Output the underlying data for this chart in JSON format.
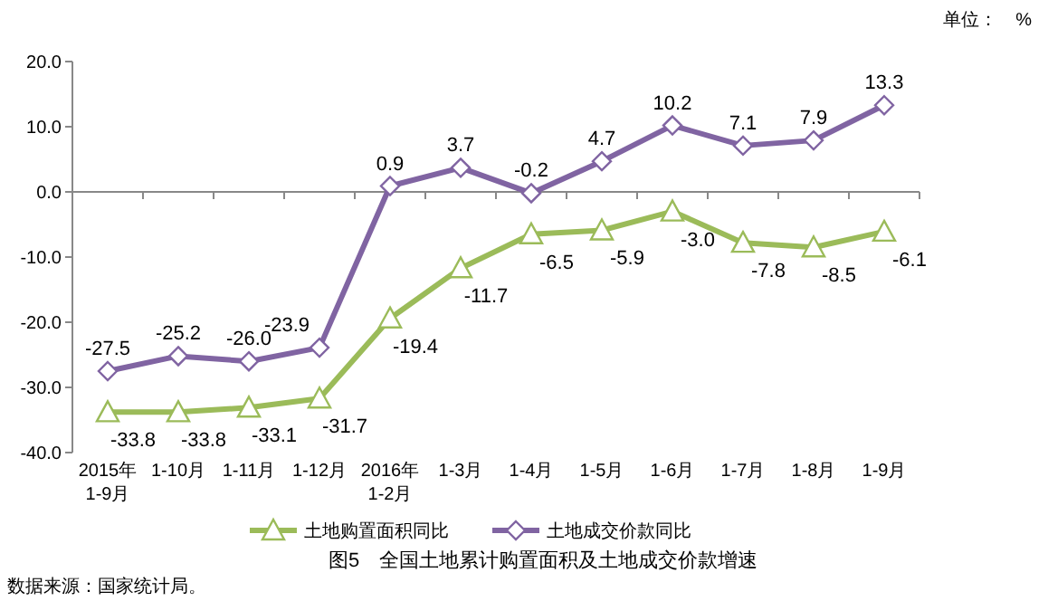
{
  "chart_data": {
    "type": "line",
    "title": "图5　全国土地累计购置面积及土地成交价款增速",
    "categories": [
      "2015年\n1-9月",
      "1-10月",
      "1-11月",
      "1-12月",
      "2016年\n1-2月",
      "1-3月",
      "1-4月",
      "1-5月",
      "1-6月",
      "1-7月",
      "1-8月",
      "1-9月"
    ],
    "series": [
      {
        "name": "土地购置面积同比",
        "color": "#9bbb59",
        "marker": "triangle",
        "values": [
          -33.8,
          -33.8,
          -33.1,
          -31.7,
          -19.4,
          -11.7,
          -6.5,
          -5.9,
          -3.0,
          -7.8,
          -8.5,
          -6.1
        ],
        "value_labels": [
          "-33.8",
          "-33.8",
          "-33.1",
          "-31.7",
          "-19.4",
          "-11.7",
          "-6.5",
          "-5.9",
          "-3.0",
          "-7.8",
          "-8.5",
          "-6.1"
        ]
      },
      {
        "name": "土地成交价款同比",
        "color": "#8064a2",
        "marker": "diamond",
        "values": [
          -27.5,
          -25.2,
          -26.0,
          -23.9,
          0.9,
          3.7,
          -0.2,
          4.7,
          10.2,
          7.1,
          7.9,
          13.3
        ],
        "value_labels": [
          "-27.5",
          "-25.2",
          "-26.0",
          "-23.9",
          "0.9",
          "3.7",
          "-0.2",
          "4.7",
          "10.2",
          "7.1",
          "7.9",
          "13.3"
        ]
      }
    ],
    "ylim": [
      -40,
      20
    ],
    "yticks": [
      {
        "value": -40,
        "label": "-40.0"
      },
      {
        "value": -30,
        "label": "-30.0"
      },
      {
        "value": -20,
        "label": "-20.0"
      },
      {
        "value": -10,
        "label": "-10.0"
      },
      {
        "value": 0,
        "label": "0.0"
      },
      {
        "value": 10,
        "label": "10.0"
      },
      {
        "value": 20,
        "label": "20.0"
      }
    ],
    "legend": "bottom",
    "annotations": [
      "单位：　%",
      "数据来源：国家统计局。"
    ]
  }
}
